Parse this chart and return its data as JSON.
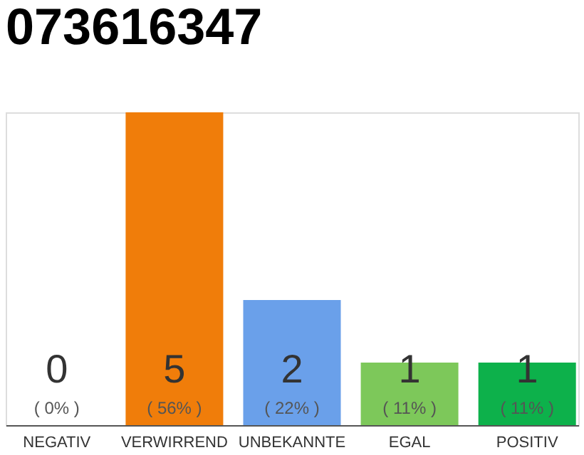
{
  "chart_data": {
    "type": "bar",
    "title": "073616347",
    "categories": [
      "NEGATIV",
      "VERWIRREND",
      "UNBEKANNTE",
      "EGAL",
      "POSITIV"
    ],
    "values": [
      0,
      5,
      2,
      1,
      1
    ],
    "colors": [
      "#9e9e9e",
      "#f07d0a",
      "#6aa0ea",
      "#7dc85a",
      "#0db14b"
    ],
    "data_labels": true,
    "annotations": [
      "( 0% )",
      "( 56% )",
      "( 22% )",
      "( 11% )",
      "( 11% )"
    ],
    "grid": false
  }
}
